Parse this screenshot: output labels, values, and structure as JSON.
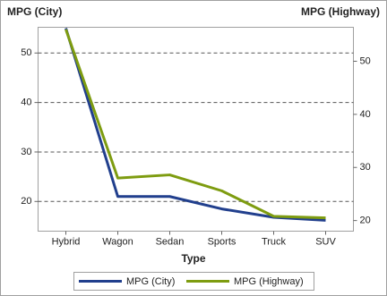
{
  "chart_data": {
    "type": "line",
    "y_label": "MPG (City)",
    "y2_label": "MPG (Highway)",
    "x_label": "Type",
    "categories": [
      "Hybrid",
      "Wagon",
      "Sedan",
      "Sports",
      "Truck",
      "SUV"
    ],
    "series": [
      {
        "name": "MPG (City)",
        "color": "#213f8d",
        "values": [
          55,
          21,
          21,
          18.5,
          16.8,
          16.2
        ]
      },
      {
        "name": "MPG (Highway)",
        "color": "#7e9c10",
        "axis": "y2",
        "values": [
          56,
          28,
          28.6,
          25.6,
          20.8,
          20.5
        ]
      }
    ],
    "ylim": [
      14,
      55.2
    ],
    "yticks": [
      20,
      30,
      40,
      50
    ],
    "y2lim": [
      18,
      56.4
    ],
    "y2ticks": [
      20,
      30,
      40,
      50
    ],
    "grid": true,
    "legend": "bottom"
  }
}
